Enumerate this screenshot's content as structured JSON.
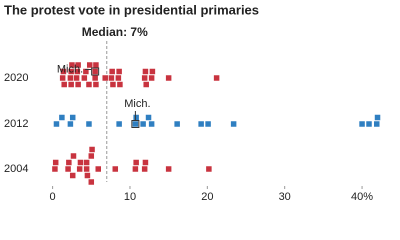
{
  "chart_data": {
    "type": "strip",
    "title": "The protest vote in presidential primaries",
    "median_label": "Median: 7%",
    "median_value": 7,
    "xlim": [
      -1.5,
      44
    ],
    "xticks": [
      0,
      10,
      20,
      30,
      {
        "value": 40,
        "label": "40%"
      }
    ],
    "rows": [
      {
        "label": "2020",
        "color": "#c8333f",
        "values": [
          1.3,
          1.4,
          1.5,
          2.3,
          2.4,
          2.4,
          2.5,
          3.1,
          3.2,
          3.3,
          3.3,
          4.1,
          4.3,
          4.7,
          4.8,
          5.5,
          5.5,
          5.6,
          5.6,
          6.8,
          7.6,
          7.7,
          7.8,
          8.5,
          8.6,
          8.7,
          11.9,
          12.0,
          12.1,
          12.8,
          12.9,
          15.0,
          21.2
        ]
      },
      {
        "label": "2012",
        "color": "#2f7fc1",
        "values": [
          0.5,
          1.2,
          2.3,
          2.6,
          4.7,
          8.6,
          10.7,
          10.8,
          11.7,
          12.4,
          12.8,
          16.1,
          19.2,
          20.1,
          23.4,
          40.0,
          40.9,
          41.9,
          42.0
        ]
      },
      {
        "label": "2004",
        "color": "#c8333f",
        "values": [
          0.3,
          0.4,
          2.0,
          2.1,
          2.6,
          2.7,
          3.5,
          3.6,
          4.4,
          4.4,
          4.5,
          5.0,
          5.0,
          5.1,
          5.9,
          8.1,
          10.7,
          10.8,
          11.9,
          12.0,
          15.0,
          20.2
        ]
      }
    ],
    "annotations": [
      {
        "text": "Mich.",
        "row": 0,
        "index": 16
      },
      {
        "text": "Mich.",
        "row": 1,
        "index": 6
      }
    ]
  }
}
